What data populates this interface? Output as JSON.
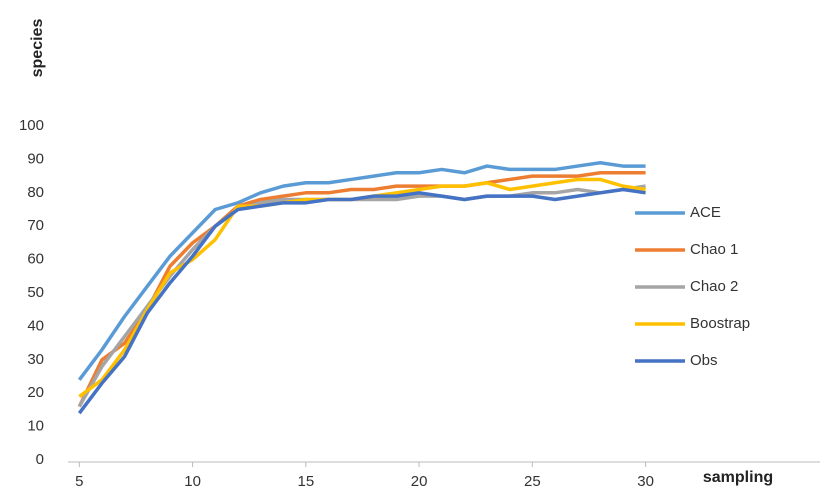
{
  "chart_data": {
    "type": "line",
    "y_label": "species",
    "x_label": "sampling",
    "x": [
      5,
      6,
      7,
      8,
      9,
      10,
      11,
      12,
      13,
      14,
      15,
      16,
      17,
      18,
      19,
      20,
      21,
      22,
      23,
      24,
      25,
      26,
      27,
      28,
      29,
      30
    ],
    "series": [
      {
        "name": "ACE",
        "color": "#5b9bd5",
        "values": [
          24,
          33,
          43,
          52,
          61,
          68,
          75,
          77,
          80,
          82,
          83,
          83,
          84,
          85,
          86,
          86,
          87,
          86,
          88,
          87,
          87,
          87,
          88,
          89,
          88,
          88
        ]
      },
      {
        "name": "Chao 1",
        "color": "#ed7d31",
        "values": [
          16,
          30,
          35,
          45,
          58,
          65,
          70,
          76,
          78,
          79,
          80,
          80,
          81,
          81,
          82,
          82,
          82,
          82,
          83,
          84,
          85,
          85,
          85,
          86,
          86,
          86
        ]
      },
      {
        "name": "Chao 2",
        "color": "#a5a5a5",
        "values": [
          16,
          28,
          37,
          46,
          55,
          63,
          70,
          75,
          77,
          78,
          78,
          78,
          78,
          78,
          78,
          79,
          79,
          78,
          79,
          79,
          80,
          80,
          81,
          80,
          81,
          82
        ]
      },
      {
        "name": "Boostrap",
        "color": "#ffc000",
        "values": [
          19,
          24,
          33,
          45,
          56,
          60,
          66,
          76,
          76,
          77,
          78,
          78,
          78,
          79,
          80,
          81,
          82,
          82,
          83,
          81,
          82,
          83,
          84,
          84,
          82,
          81
        ]
      },
      {
        "name": "Obs",
        "color": "#4472c4",
        "values": [
          14,
          23,
          31,
          44,
          53,
          61,
          70,
          75,
          76,
          77,
          77,
          78,
          78,
          79,
          79,
          80,
          79,
          78,
          79,
          79,
          79,
          78,
          79,
          80,
          81,
          80
        ]
      }
    ],
    "xlim": [
      4.5,
      37.7
    ],
    "xticks": [
      5,
      10,
      15,
      20,
      25,
      30
    ],
    "ylim": [
      0,
      100
    ],
    "yticks": [
      0,
      10,
      20,
      30,
      40,
      50,
      60,
      70,
      80,
      90,
      100
    ],
    "legend": "right"
  }
}
